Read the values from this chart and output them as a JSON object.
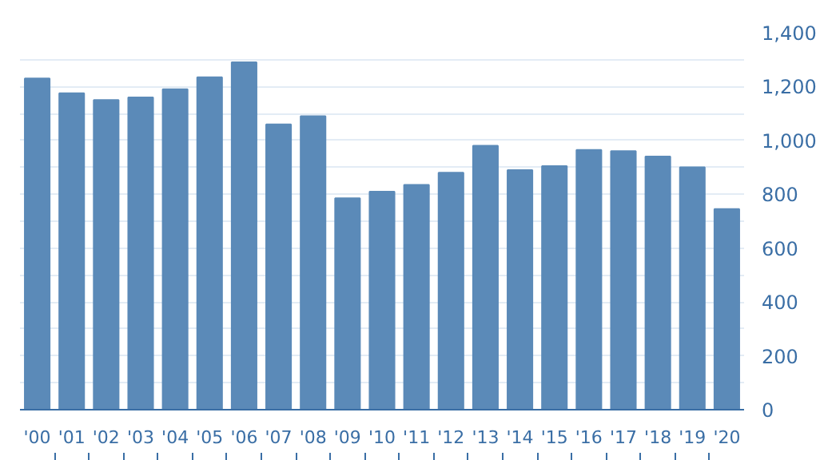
{
  "chart_data": {
    "type": "bar",
    "categories": [
      "'00",
      "'01",
      "'02",
      "'03",
      "'04",
      "'05",
      "'06",
      "'07",
      "'08",
      "'09",
      "'10",
      "'11",
      "'12",
      "'13",
      "'14",
      "'15",
      "'16",
      "'17",
      "'18",
      "'19",
      "'20"
    ],
    "series": [
      {
        "color": "#5b8ab8",
        "values": [
          1230,
          1175,
          1150,
          1160,
          1190,
          1235,
          1290,
          1060,
          1090,
          785,
          810,
          835,
          880,
          980,
          890,
          905,
          965,
          960,
          940,
          900,
          745
        ]
      }
    ],
    "ylim": [
      0,
      1400
    ],
    "yticks": [
      0,
      {
        "value": 100,
        "label": null
      },
      200,
      {
        "value": 300,
        "label": null
      },
      400,
      {
        "value": 500,
        "label": null
      },
      600,
      {
        "value": 700,
        "label": null
      },
      800,
      {
        "value": 900,
        "label": null
      },
      {
        "value": 1000,
        "label": "1,000"
      },
      {
        "value": 1100,
        "label": null
      },
      {
        "value": 1200,
        "label": "1,200"
      },
      {
        "value": 1300,
        "label": null
      },
      {
        "value": 1400,
        "label": "1,400"
      }
    ],
    "grid": "y"
  }
}
